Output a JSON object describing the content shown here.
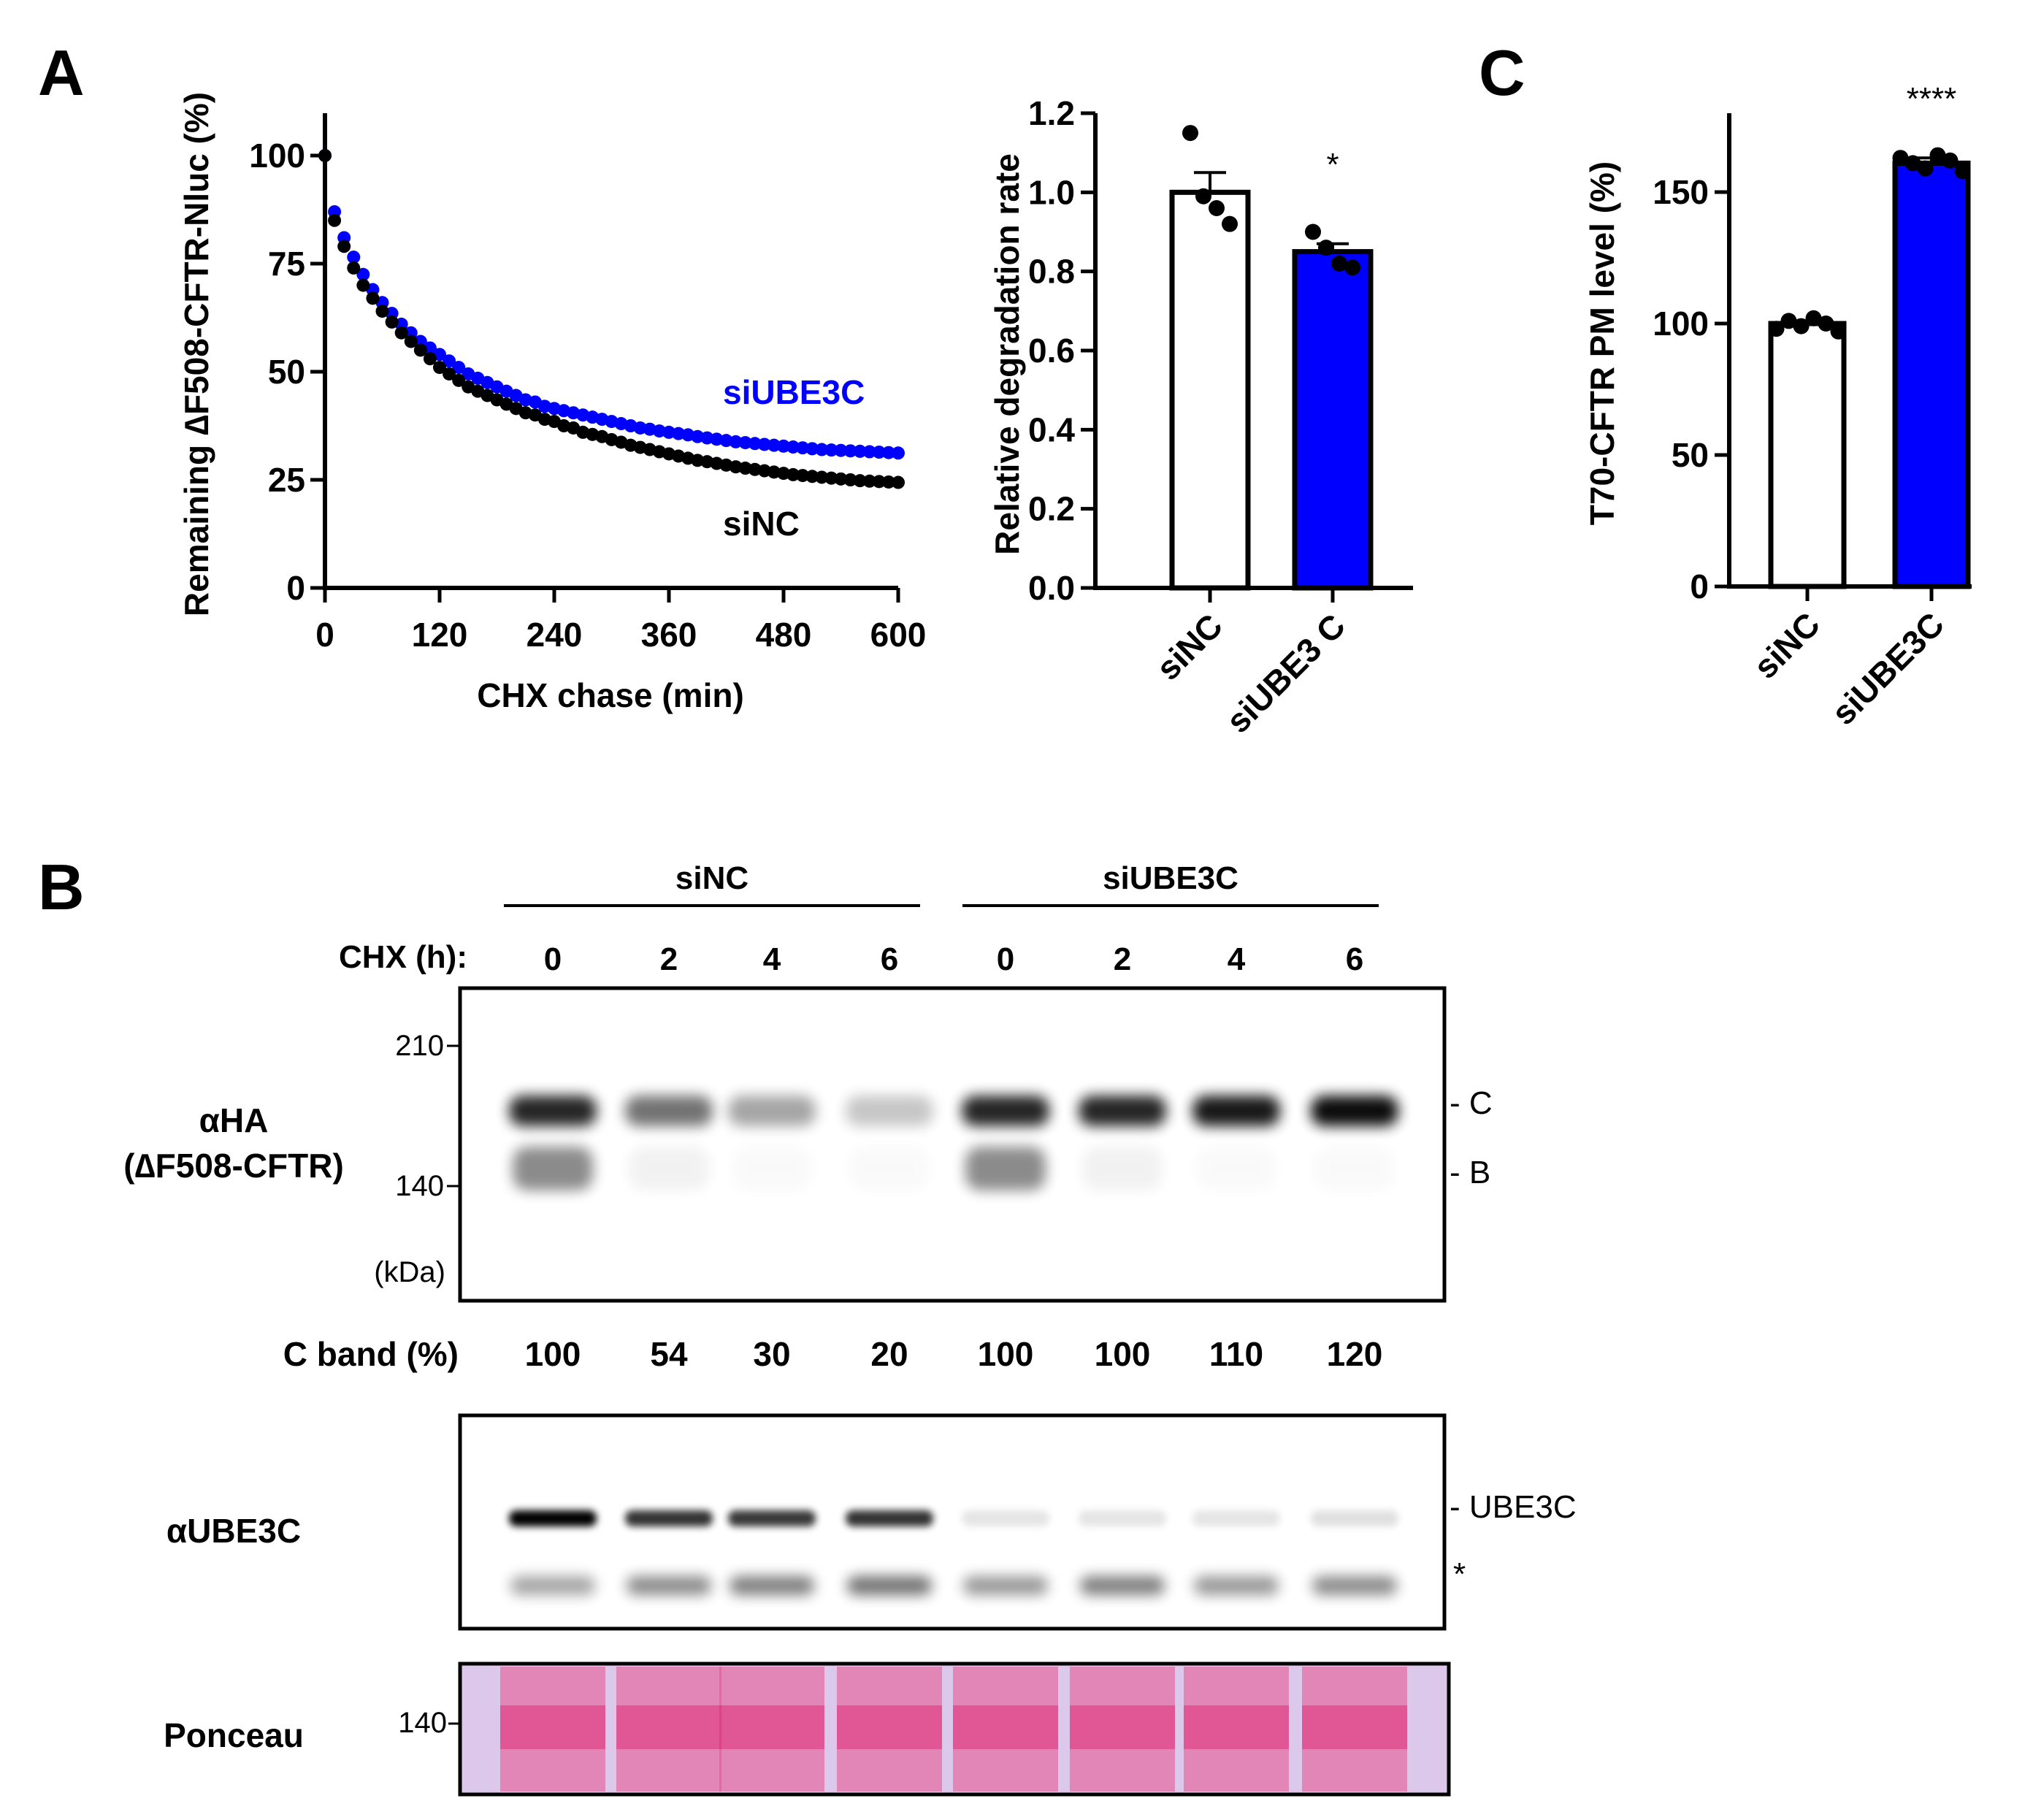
{
  "colors": {
    "siNC": "#000000",
    "siUBE3C": "#0000ff",
    "ponceau": "#e8508c"
  },
  "panels": {
    "a": "A",
    "b": "B",
    "c": "C"
  },
  "chart_data": [
    {
      "type": "scatter",
      "title": "",
      "xlabel": "CHX chase (min)",
      "ylabel": "Remaining ∆F508-CFTR-Nluc (%)",
      "xlim": [
        0,
        600
      ],
      "ylim": [
        0,
        110
      ],
      "xticks": [
        "0",
        "120",
        "240",
        "360",
        "480",
        "600"
      ],
      "yticks": [
        "0",
        "25",
        "50",
        "75",
        "100"
      ],
      "x": [
        0,
        10,
        20,
        30,
        40,
        50,
        60,
        70,
        80,
        90,
        100,
        110,
        120,
        130,
        140,
        150,
        160,
        170,
        180,
        190,
        200,
        210,
        220,
        230,
        240,
        250,
        260,
        270,
        280,
        290,
        300,
        310,
        320,
        330,
        340,
        350,
        360,
        370,
        380,
        390,
        400,
        410,
        420,
        430,
        440,
        450,
        460,
        470,
        480,
        490,
        500,
        510,
        520,
        530,
        540,
        550,
        560,
        570,
        580,
        590,
        600
      ],
      "series": [
        {
          "name": "siUBE3C",
          "values": [
            100,
            87,
            81,
            76.5,
            72.5,
            69,
            66,
            63.5,
            61,
            59,
            57,
            55.5,
            54,
            52.5,
            51,
            49.5,
            48.5,
            47.5,
            46.5,
            45.5,
            44.5,
            43.5,
            43,
            42,
            41.5,
            41,
            40.5,
            40,
            39.5,
            39,
            38.5,
            38,
            37.5,
            37,
            36.7,
            36.3,
            36,
            35.7,
            35.4,
            35,
            34.7,
            34.4,
            34.1,
            33.8,
            33.6,
            33.4,
            33.2,
            33,
            32.8,
            32.6,
            32.4,
            32.2,
            32,
            31.9,
            31.8,
            31.7,
            31.6,
            31.5,
            31.4,
            31.3,
            31.2
          ]
        },
        {
          "name": "siNC",
          "values": [
            100,
            85,
            79,
            74,
            70,
            67,
            64,
            61.5,
            59,
            57,
            55,
            53,
            51,
            49.5,
            48,
            46.5,
            45.5,
            44.5,
            43.5,
            42.5,
            41.5,
            40.5,
            40,
            39,
            38.5,
            37.5,
            37,
            36,
            35.5,
            35,
            34.3,
            33.7,
            33,
            32.5,
            32,
            31.5,
            31,
            30.5,
            30,
            29.5,
            29.2,
            28.8,
            28.4,
            28,
            27.7,
            27.4,
            27.1,
            26.8,
            26.5,
            26.2,
            26,
            25.8,
            25.6,
            25.4,
            25.2,
            25,
            24.8,
            24.7,
            24.6,
            24.5,
            24.4
          ]
        }
      ]
    },
    {
      "type": "bar",
      "title": "",
      "xlabel": "",
      "ylabel": "Relative degradation rate",
      "ylim": [
        0,
        1.2
      ],
      "yticks": [
        "0.0",
        "0.2",
        "0.4",
        "0.6",
        "0.8",
        "1.0",
        "1.2"
      ],
      "categories": [
        "siNC",
        "siUBE3 C"
      ],
      "values": [
        1.0,
        0.85
      ],
      "errors": [
        0.05,
        0.02
      ],
      "points": [
        [
          1.15,
          0.99,
          0.96,
          0.92
        ],
        [
          0.9,
          0.86,
          0.82,
          0.81
        ]
      ],
      "significance": [
        "",
        "*"
      ]
    },
    {
      "type": "bar",
      "title": "",
      "xlabel": "",
      "ylabel": "T70-CFTR PM level (%)",
      "ylim": [
        0,
        180
      ],
      "yticks": [
        "0",
        "50",
        "100",
        "150"
      ],
      "categories": [
        "siNC",
        "siUBE3C"
      ],
      "values": [
        100,
        161
      ],
      "errors": [
        1,
        2
      ],
      "points": [
        [
          98,
          101,
          99,
          102,
          100,
          97
        ],
        [
          163,
          161,
          159,
          164,
          162,
          158
        ]
      ],
      "significance": [
        "",
        "****"
      ]
    }
  ],
  "blot": {
    "group_labels": [
      "siNC",
      "siUBE3C"
    ],
    "chx_label": "CHX (h):",
    "lanes": [
      "0",
      "2",
      "4",
      "6",
      "0",
      "2",
      "4",
      "6"
    ],
    "ha_label": "αHA",
    "ha_sublabel": "(∆F508-CFTR)",
    "mw_210": "210",
    "mw_140": "140",
    "kda": "(kDa)",
    "band_c": "- C",
    "band_b": "- B",
    "c_band_label": "C band (%)",
    "c_band_values": [
      "100",
      "54",
      "30",
      "20",
      "100",
      "100",
      "110",
      "120"
    ],
    "ube3c_label": "αUBE3C",
    "ube3c_band": "- UBE3C",
    "asterisk": "*",
    "ponceau_label": "Ponceau",
    "ponceau_mw": "140",
    "c_intensity": [
      0.85,
      0.55,
      0.35,
      0.22,
      0.85,
      0.85,
      0.9,
      0.95
    ],
    "b_intensity": [
      0.45,
      0.05,
      0.02,
      0.02,
      0.45,
      0.05,
      0.02,
      0.02
    ],
    "ube3c_intensity": [
      1.0,
      0.8,
      0.78,
      0.8,
      0.1,
      0.1,
      0.1,
      0.12
    ],
    "nonspecific_intensity": [
      0.35,
      0.45,
      0.5,
      0.55,
      0.4,
      0.5,
      0.4,
      0.45
    ]
  }
}
